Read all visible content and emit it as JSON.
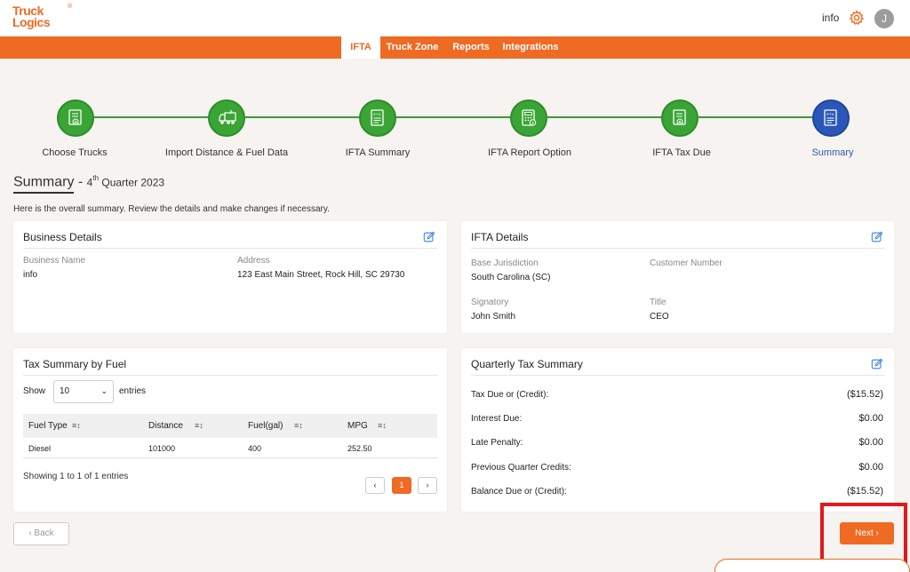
{
  "brand": {
    "name": "Truck Logics",
    "line1": "Truck",
    "line2": "Logics",
    "registered": "®",
    "color": "#ef6a23"
  },
  "header": {
    "user_name": "info",
    "avatar_initial": "J"
  },
  "nav": {
    "items": [
      "IFTA",
      "Truck Zone",
      "Reports",
      "Integrations"
    ],
    "active": "IFTA"
  },
  "stepper": {
    "steps": [
      "Choose Trucks",
      "Import Distance & Fuel Data",
      "IFTA Summary",
      "IFTA Report Option",
      "IFTA Tax Due",
      "Summary"
    ],
    "current": "Summary"
  },
  "page": {
    "title_prefix": "Summary - ",
    "quarter_num": "4",
    "quarter_suffix": "th",
    "quarter_rest": " Quarter 2023",
    "intro": "Here is the overall summary. Review the details and make changes if necessary."
  },
  "business": {
    "heading": "Business Details",
    "name_label": "Business Name",
    "name_value": "info",
    "address_label": "Address",
    "address_value": "123 East Main Street, Rock Hill, SC 29730"
  },
  "ifta": {
    "heading": "IFTA Details",
    "base_label": "Base Jurisdiction",
    "base_value": "South Carolina (SC)",
    "customer_label": "Customer Number",
    "customer_value": "",
    "signatory_label": "Signatory",
    "signatory_value": "John Smith",
    "title_label": "Title",
    "title_value": "CEO"
  },
  "fuel_table": {
    "heading": "Tax Summary by Fuel",
    "show_label": "Show",
    "page_size": "10",
    "entries_label": "entries",
    "columns": [
      "Fuel Type",
      "Distance",
      "Fuel(gal)",
      "MPG"
    ],
    "rows": [
      [
        "Diesel",
        "101000",
        "400",
        "252.50"
      ]
    ],
    "showing_text": "Showing 1 to 1 of 1 entries",
    "prev": "‹",
    "page": "1",
    "next": "›"
  },
  "quarterly": {
    "heading": "Quarterly Tax Summary",
    "rows": [
      {
        "label": "Tax Due or (Credit):",
        "value": "($15.52)"
      },
      {
        "label": "Interest Due:",
        "value": "$0.00"
      },
      {
        "label": "Late Penalty:",
        "value": "$0.00"
      },
      {
        "label": "Previous Quarter Credits:",
        "value": "$0.00"
      },
      {
        "label": "Balance Due or (Credit):",
        "value": "($15.52)"
      }
    ]
  },
  "actions": {
    "back_label": "‹ Back",
    "next_label": "Next ›"
  },
  "colors": {
    "accent": "#ef6a23",
    "step_done": "#3aa535",
    "step_current": "#2b58b8",
    "edit_icon": "#3b7fd9",
    "highlight": "#e5171e"
  },
  "icons": [
    "gear-icon",
    "document-download-icon",
    "truck-icon",
    "ifta-document-icon",
    "calculator-icon",
    "edit-icon",
    "sort-icon",
    "chevron-down-icon"
  ]
}
